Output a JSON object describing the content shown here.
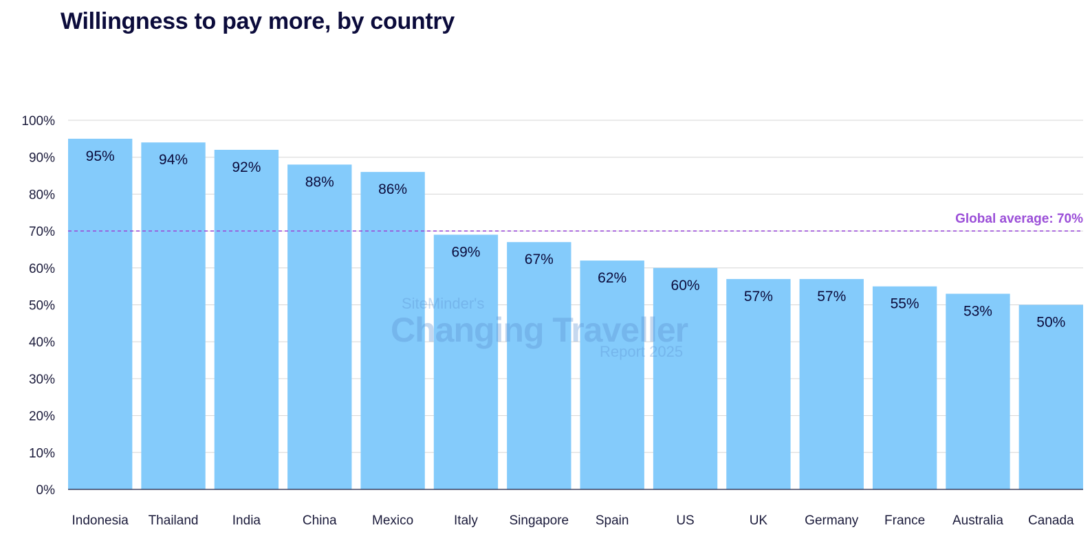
{
  "chart_data": {
    "type": "bar",
    "title": "Willingness to pay more, by country",
    "categories": [
      "Indonesia",
      "Thailand",
      "India",
      "China",
      "Mexico",
      "Italy",
      "Singapore",
      "Spain",
      "US",
      "UK",
      "Germany",
      "France",
      "Australia",
      "Canada"
    ],
    "values": [
      95,
      94,
      92,
      88,
      86,
      69,
      67,
      62,
      60,
      57,
      57,
      55,
      53,
      50
    ],
    "value_labels": [
      "95%",
      "94%",
      "92%",
      "88%",
      "86%",
      "69%",
      "67%",
      "62%",
      "60%",
      "57%",
      "57%",
      "55%",
      "53%",
      "50%"
    ],
    "ylim": [
      0,
      100
    ],
    "yticks": [
      0,
      10,
      20,
      30,
      40,
      50,
      60,
      70,
      80,
      90,
      100
    ],
    "ytick_labels": [
      "0%",
      "10%",
      "20%",
      "30%",
      "40%",
      "50%",
      "60%",
      "70%",
      "80%",
      "90%",
      "100%"
    ],
    "xlabel": "",
    "ylabel": "",
    "grid": true,
    "reference_line": {
      "value": 70,
      "label": "Global average: 70%"
    },
    "watermark": {
      "line1": "SiteMinder's",
      "line2": "Changing Traveller",
      "line3": "Report 2025"
    },
    "colors": {
      "bar": "#84cbfb",
      "reference": "#9b4fd8",
      "text": "#0b0b3b"
    }
  }
}
